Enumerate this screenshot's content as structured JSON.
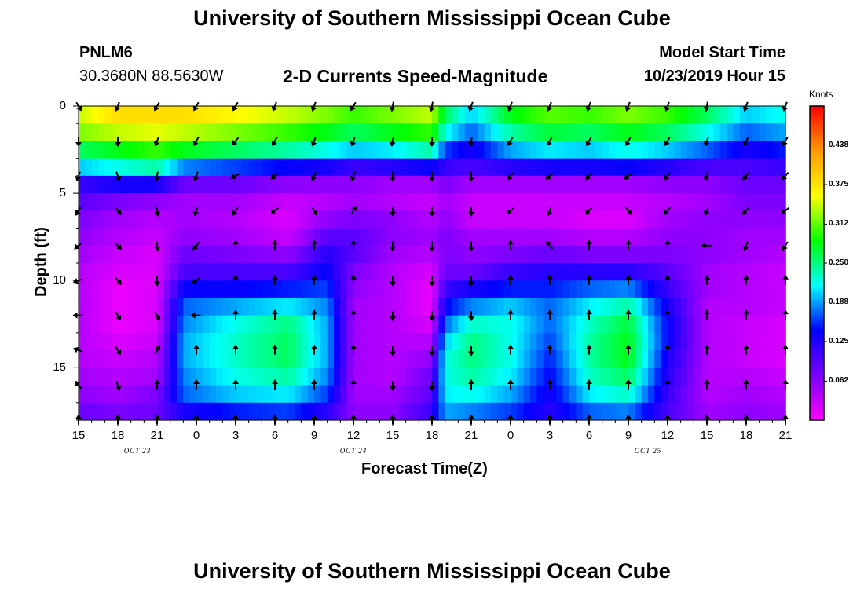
{
  "header": {
    "title_top": "University of Southern Mississippi Ocean Cube",
    "title_bottom": "University of Southern Mississippi Ocean Cube",
    "station": "PNLM6",
    "coords": "30.3680N 88.5630W",
    "model_start_label": "Model Start Time",
    "model_start_value": "10/23/2019 Hour 15"
  },
  "chart_data": {
    "type": "heatmap",
    "title": "2-D Currents Speed-Magnitude",
    "xlabel": "Forecast Time(Z)",
    "ylabel": "Depth (ft)",
    "x_hours": [
      0,
      3,
      6,
      9,
      12,
      15,
      18,
      21,
      24,
      27,
      30,
      33,
      36,
      39,
      42,
      45,
      48,
      51,
      54
    ],
    "x_tick_labels": [
      "15",
      "18",
      "21",
      "0",
      "3",
      "6",
      "9",
      "12",
      "15",
      "18",
      "21",
      "0",
      "3",
      "6",
      "9",
      "12",
      "15",
      "18",
      "21"
    ],
    "date_labels": [
      {
        "label": "OCT 23",
        "hour": 4.5
      },
      {
        "label": "OCT 24",
        "hour": 21
      },
      {
        "label": "OCT 25",
        "hour": 43.5
      }
    ],
    "y_ticks": [
      0,
      5,
      10,
      15
    ],
    "y_tick_labels": [
      "0",
      "5",
      "10",
      "15"
    ],
    "ylim": [
      0,
      18
    ],
    "xlim": [
      0,
      54
    ],
    "colorbar": {
      "unit": "Knots",
      "min": 0,
      "max": 0.5,
      "ticks": [
        0.062,
        0.125,
        0.188,
        0.25,
        0.312,
        0.375,
        0.438
      ],
      "tick_labels": [
        "0.062",
        "0.125",
        "0.188",
        "0.250",
        "0.312",
        "0.375",
        "0.438"
      ],
      "colors": [
        "#ff00ff",
        "#7a00ff",
        "#0000ff",
        "#00ffff",
        "#00ff00",
        "#ffff00",
        "#ff9900",
        "#ff0000"
      ]
    },
    "time_profiles": [
      {
        "hour": 0,
        "speeds": [
          0.34,
          0.32,
          0.26,
          0.2,
          0.11,
          0.09,
          0.07,
          0.06,
          0.05,
          0.04,
          0.04,
          0.04,
          0.04,
          0.04,
          0.04,
          0.05,
          0.06,
          0.08
        ]
      },
      {
        "hour": 3,
        "speeds": [
          0.38,
          0.34,
          0.28,
          0.22,
          0.13,
          0.07,
          0.05,
          0.04,
          0.03,
          0.02,
          0.01,
          0.01,
          0.01,
          0.02,
          0.03,
          0.04,
          0.05,
          0.07
        ]
      },
      {
        "hour": 6,
        "speeds": [
          0.38,
          0.35,
          0.3,
          0.24,
          0.13,
          0.06,
          0.04,
          0.03,
          0.02,
          0.02,
          0.02,
          0.02,
          0.02,
          0.03,
          0.04,
          0.05,
          0.07,
          0.08
        ]
      },
      {
        "hour": 8,
        "speeds": [
          0.38,
          0.34,
          0.28,
          0.18,
          0.08,
          0.05,
          0.05,
          0.06,
          0.08,
          0.1,
          0.14,
          0.17,
          0.18,
          0.19,
          0.19,
          0.18,
          0.17,
          0.13
        ]
      },
      {
        "hour": 12,
        "speeds": [
          0.36,
          0.32,
          0.26,
          0.16,
          0.08,
          0.05,
          0.04,
          0.05,
          0.07,
          0.1,
          0.14,
          0.19,
          0.22,
          0.23,
          0.23,
          0.22,
          0.2,
          0.15
        ]
      },
      {
        "hour": 16,
        "speeds": [
          0.34,
          0.3,
          0.24,
          0.14,
          0.06,
          0.03,
          0.02,
          0.03,
          0.06,
          0.1,
          0.15,
          0.21,
          0.25,
          0.26,
          0.26,
          0.24,
          0.21,
          0.16
        ]
      },
      {
        "hour": 19,
        "speeds": [
          0.32,
          0.28,
          0.22,
          0.13,
          0.06,
          0.04,
          0.06,
          0.09,
          0.12,
          0.14,
          0.16,
          0.18,
          0.19,
          0.19,
          0.19,
          0.18,
          0.16,
          0.12
        ]
      },
      {
        "hour": 21,
        "speeds": [
          0.3,
          0.26,
          0.2,
          0.11,
          0.06,
          0.05,
          0.07,
          0.09,
          0.09,
          0.07,
          0.06,
          0.05,
          0.05,
          0.05,
          0.05,
          0.05,
          0.05,
          0.06
        ]
      },
      {
        "hour": 24,
        "speeds": [
          0.32,
          0.28,
          0.21,
          0.12,
          0.05,
          0.04,
          0.06,
          0.06,
          0.05,
          0.04,
          0.04,
          0.04,
          0.04,
          0.04,
          0.04,
          0.04,
          0.05,
          0.06
        ]
      },
      {
        "hour": 27,
        "speeds": [
          0.34,
          0.3,
          0.24,
          0.14,
          0.05,
          0.03,
          0.04,
          0.05,
          0.04,
          0.02,
          0.01,
          0.01,
          0.02,
          0.04,
          0.06,
          0.08,
          0.09,
          0.11
        ]
      },
      {
        "hour": 28,
        "speeds": [
          0.26,
          0.22,
          0.16,
          0.11,
          0.07,
          0.05,
          0.06,
          0.07,
          0.07,
          0.08,
          0.11,
          0.14,
          0.17,
          0.2,
          0.22,
          0.22,
          0.21,
          0.19
        ]
      },
      {
        "hour": 30,
        "speeds": [
          0.2,
          0.17,
          0.13,
          0.1,
          0.05,
          0.03,
          0.03,
          0.05,
          0.06,
          0.08,
          0.13,
          0.18,
          0.23,
          0.25,
          0.25,
          0.24,
          0.22,
          0.18
        ]
      },
      {
        "hour": 33,
        "speeds": [
          0.28,
          0.24,
          0.19,
          0.12,
          0.05,
          0.03,
          0.03,
          0.05,
          0.07,
          0.11,
          0.15,
          0.2,
          0.22,
          0.22,
          0.22,
          0.21,
          0.19,
          0.16
        ]
      },
      {
        "hour": 36,
        "speeds": [
          0.31,
          0.27,
          0.21,
          0.13,
          0.05,
          0.03,
          0.03,
          0.05,
          0.08,
          0.12,
          0.15,
          0.17,
          0.17,
          0.16,
          0.15,
          0.14,
          0.13,
          0.12
        ]
      },
      {
        "hour": 39,
        "speeds": [
          0.3,
          0.26,
          0.2,
          0.13,
          0.05,
          0.03,
          0.02,
          0.04,
          0.07,
          0.12,
          0.17,
          0.21,
          0.23,
          0.24,
          0.24,
          0.23,
          0.21,
          0.17
        ]
      },
      {
        "hour": 42,
        "speeds": [
          0.32,
          0.28,
          0.22,
          0.14,
          0.05,
          0.03,
          0.02,
          0.04,
          0.07,
          0.12,
          0.18,
          0.24,
          0.27,
          0.28,
          0.28,
          0.26,
          0.23,
          0.18
        ]
      },
      {
        "hour": 45,
        "speeds": [
          0.3,
          0.26,
          0.2,
          0.12,
          0.06,
          0.04,
          0.05,
          0.06,
          0.07,
          0.09,
          0.11,
          0.13,
          0.14,
          0.14,
          0.13,
          0.12,
          0.11,
          0.1
        ]
      },
      {
        "hour": 48,
        "speeds": [
          0.26,
          0.22,
          0.17,
          0.1,
          0.06,
          0.05,
          0.06,
          0.06,
          0.06,
          0.05,
          0.05,
          0.04,
          0.04,
          0.04,
          0.04,
          0.04,
          0.04,
          0.05
        ]
      },
      {
        "hour": 51,
        "speeds": [
          0.2,
          0.17,
          0.13,
          0.1,
          0.08,
          0.07,
          0.06,
          0.05,
          0.05,
          0.04,
          0.04,
          0.04,
          0.03,
          0.03,
          0.03,
          0.04,
          0.05,
          0.06
        ]
      },
      {
        "hour": 54,
        "speeds": [
          0.22,
          0.19,
          0.15,
          0.11,
          0.08,
          0.07,
          0.06,
          0.05,
          0.04,
          0.03,
          0.03,
          0.03,
          0.02,
          0.02,
          0.02,
          0.03,
          0.04,
          0.05
        ]
      }
    ],
    "vector_depths": [
      0,
      2,
      4,
      6,
      8,
      10,
      12,
      14,
      16,
      18
    ],
    "vector_profiles": [
      {
        "hour": 0,
        "dirs": [
          150,
          180,
          200,
          210,
          230,
          250,
          270,
          290,
          320,
          0
        ]
      },
      {
        "hour": 3,
        "dirs": [
          200,
          180,
          160,
          140,
          135,
          140,
          150,
          150,
          160,
          0
        ]
      },
      {
        "hour": 6,
        "dirs": [
          210,
          200,
          190,
          170,
          170,
          180,
          150,
          30,
          0,
          0
        ]
      },
      {
        "hour": 9,
        "dirs": [
          210,
          210,
          200,
          200,
          220,
          230,
          270,
          0,
          0,
          0
        ]
      },
      {
        "hour": 12,
        "dirs": [
          210,
          220,
          240,
          210,
          0,
          0,
          0,
          0,
          0,
          0
        ]
      },
      {
        "hour": 15,
        "dirs": [
          200,
          210,
          230,
          230,
          0,
          0,
          0,
          0,
          0,
          0
        ]
      },
      {
        "hour": 18,
        "dirs": [
          200,
          200,
          210,
          150,
          0,
          0,
          0,
          0,
          0,
          0
        ]
      },
      {
        "hour": 21,
        "dirs": [
          210,
          200,
          200,
          30,
          0,
          0,
          0,
          0,
          0,
          0
        ]
      },
      {
        "hour": 24,
        "dirs": [
          190,
          190,
          180,
          180,
          180,
          180,
          180,
          180,
          180,
          0
        ]
      },
      {
        "hour": 27,
        "dirs": [
          190,
          180,
          180,
          180,
          180,
          180,
          180,
          180,
          180,
          0
        ]
      },
      {
        "hour": 30,
        "dirs": [
          200,
          190,
          180,
          180,
          180,
          180,
          180,
          180,
          0,
          0
        ]
      },
      {
        "hour": 33,
        "dirs": [
          200,
          210,
          220,
          230,
          0,
          0,
          0,
          0,
          0,
          0
        ]
      },
      {
        "hour": 36,
        "dirs": [
          200,
          210,
          230,
          200,
          320,
          0,
          0,
          0,
          0,
          0
        ]
      },
      {
        "hour": 39,
        "dirs": [
          200,
          210,
          220,
          220,
          0,
          0,
          0,
          0,
          0,
          0
        ]
      },
      {
        "hour": 42,
        "dirs": [
          200,
          210,
          230,
          140,
          0,
          0,
          0,
          0,
          0,
          0
        ]
      },
      {
        "hour": 45,
        "dirs": [
          200,
          210,
          220,
          220,
          0,
          0,
          0,
          0,
          0,
          0
        ]
      },
      {
        "hour": 48,
        "dirs": [
          190,
          200,
          200,
          200,
          270,
          0,
          0,
          0,
          0,
          0
        ]
      },
      {
        "hour": 51,
        "dirs": [
          200,
          210,
          220,
          220,
          200,
          0,
          0,
          0,
          0,
          0
        ]
      },
      {
        "hour": 54,
        "dirs": [
          200,
          210,
          220,
          230,
          210,
          0,
          0,
          0,
          0,
          0
        ]
      }
    ]
  }
}
